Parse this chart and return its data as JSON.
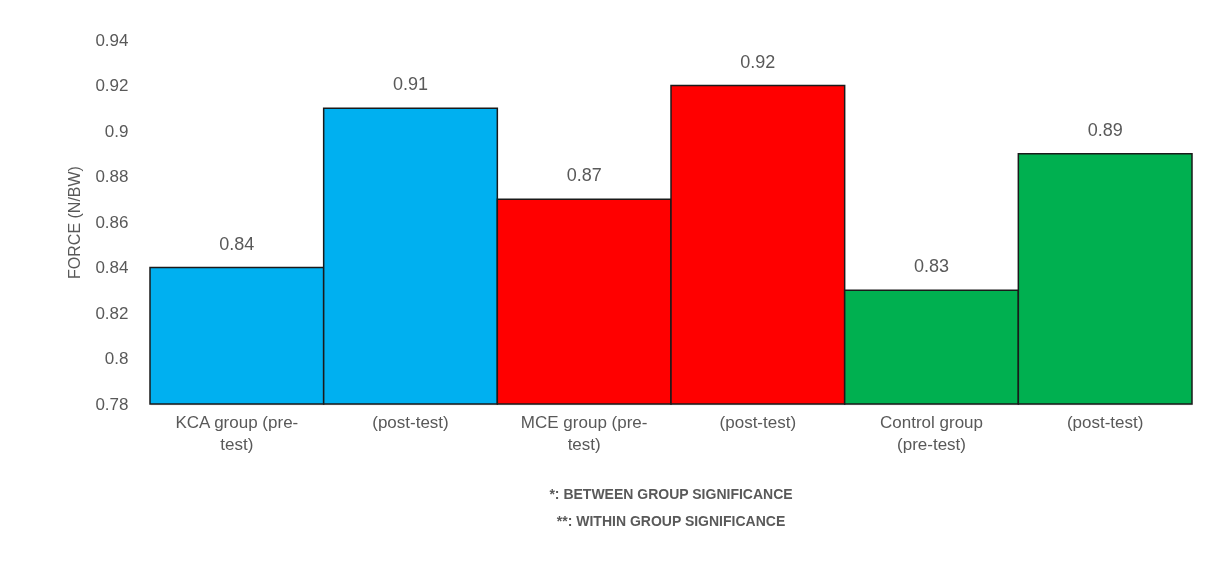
{
  "chart_data": {
    "type": "bar",
    "ylabel": "FORCE (N/BW)",
    "categories": [
      "KCA group (pre-test)",
      "(post-test)",
      "MCE group (pre-test)",
      "(post-test)",
      "Control group (pre-test)",
      "(post-test)"
    ],
    "values": [
      0.84,
      0.91,
      0.87,
      0.92,
      0.83,
      0.89
    ],
    "colors": [
      "#00b0f0",
      "#00b0f0",
      "#ff0000",
      "#ff0000",
      "#00b050",
      "#00b050"
    ],
    "ylim": [
      0.78,
      0.94
    ],
    "yticks": [
      0.78,
      0.8,
      0.82,
      0.84,
      0.86,
      0.88,
      0.9,
      0.92,
      0.94
    ],
    "data_labels": true,
    "annotations": [
      "*: BETWEEN GROUP SIGNIFICANCE",
      "**: WITHIN GROUP SIGNIFICANCE"
    ]
  }
}
